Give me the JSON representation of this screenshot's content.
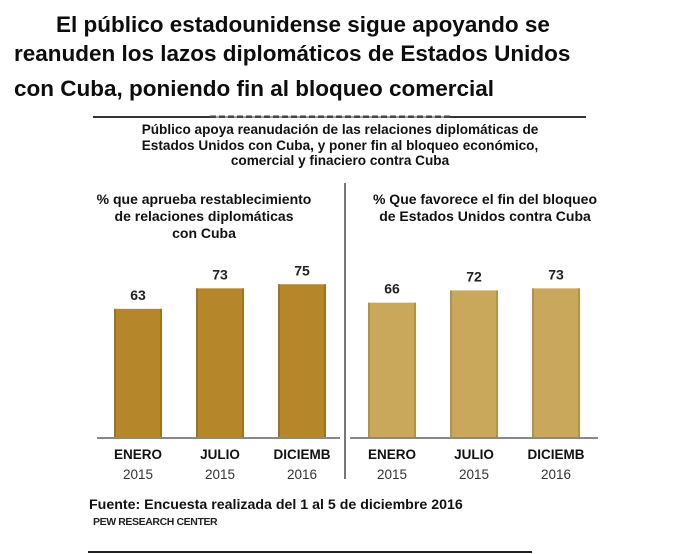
{
  "headline": {
    "line1": "El público estadounidense sigue apoyando se",
    "line2": "reanuden los lazos diplomáticos de Estados Unidos",
    "line3": "con Cuba, poniendo fin al bloqueo comercial"
  },
  "subtitle": {
    "line1": "Público apoya reanudación de las relaciones diplomáticas de",
    "line2": "Estados Unidos con Cuba, y poner fin al bloqueo económico,",
    "line3": "comercial y finaciero contra Cuba"
  },
  "source": "Fuente: Encuesta realizada del 1 al 5 de diciembre 2016",
  "publisher": "PEW RESEARCH CENTER",
  "colors": {
    "left_bars": "#b5862a",
    "right_bars": "#c9a85c",
    "axis": "#888888",
    "divider": "#777777"
  },
  "chart_data": [
    {
      "type": "bar",
      "title": "% que aprueba restablecimiento de relaciones diplomáticas con Cuba",
      "title_lines": [
        "% que aprueba restablecimiento",
        "de relaciones diplomáticas",
        "con Cuba"
      ],
      "categories": [
        "ENERO 2015",
        "JULIO 2015",
        "DICIEMB 2016"
      ],
      "category_months": [
        "ENERO",
        "JULIO",
        "DICIEMB"
      ],
      "category_years": [
        "2015",
        "2015",
        "2016"
      ],
      "values": [
        63,
        73,
        75
      ],
      "data_labels": [
        "63",
        "73",
        "75"
      ],
      "xlabel": "",
      "ylabel": "",
      "ylim": [
        0,
        100
      ],
      "grid": false,
      "legend": "none",
      "color": "#b5862a"
    },
    {
      "type": "bar",
      "title": "% Que favorece el fin del bloqueo de Estados Unidos contra Cuba",
      "title_lines": [
        "% Que favorece el fin del bloqueo",
        "de Estados Unidos contra Cuba"
      ],
      "categories": [
        "ENERO 2015",
        "JULIO 2015",
        "DICIEMB 2016"
      ],
      "category_months": [
        "ENERO",
        "JULIO",
        "DICIEMB"
      ],
      "category_years": [
        "2015",
        "2015",
        "2016"
      ],
      "values": [
        66,
        72,
        73
      ],
      "data_labels": [
        "66",
        "72",
        "73"
      ],
      "xlabel": "",
      "ylabel": "",
      "ylim": [
        0,
        100
      ],
      "grid": false,
      "legend": "none",
      "color": "#c9a85c"
    }
  ]
}
